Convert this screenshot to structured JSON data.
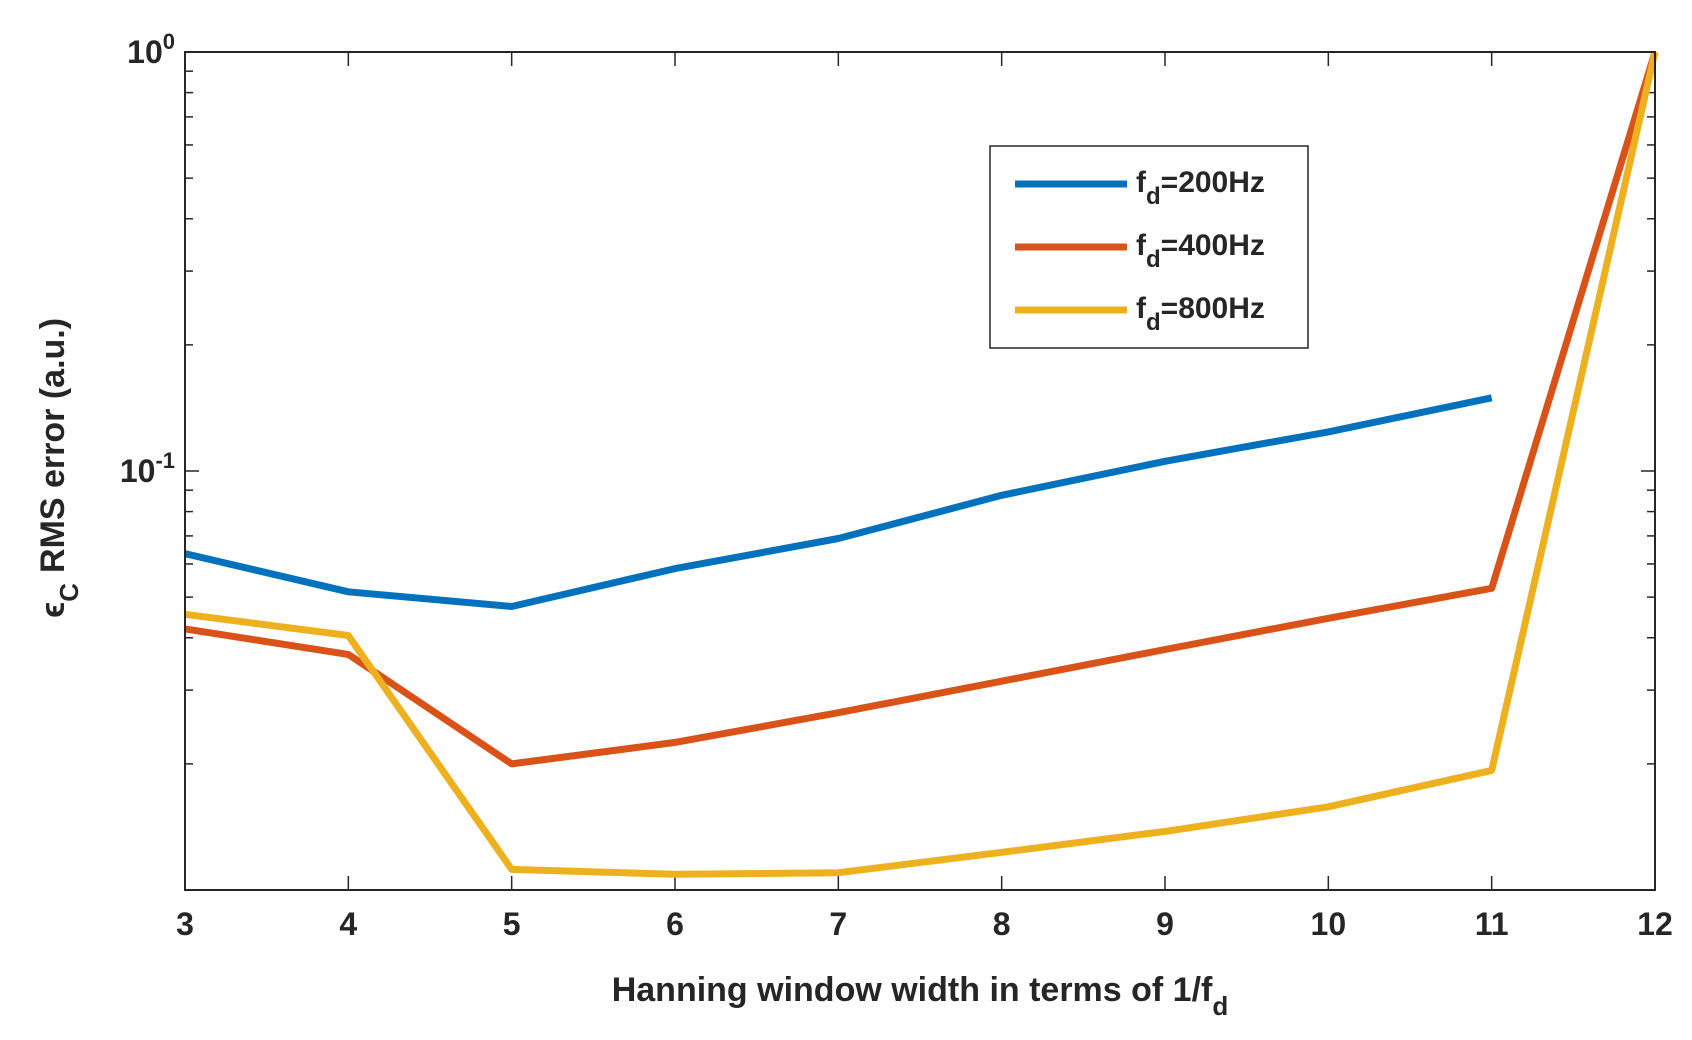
{
  "chart_data": {
    "type": "line",
    "title": "",
    "xlabel": {
      "main": "Hanning window width in terms of 1/f",
      "sub": "d"
    },
    "ylabel": {
      "symbol": "ϵ",
      "sub": "C",
      "rest": "RMS error (a.u.)"
    },
    "x": [
      3,
      4,
      5,
      6,
      7,
      8,
      9,
      10,
      11,
      12
    ],
    "xlim": [
      3,
      12
    ],
    "ylim": [
      0.01,
      1
    ],
    "yscale": "log",
    "x_tick_labels": [
      "3",
      "4",
      "5",
      "6",
      "7",
      "8",
      "9",
      "10",
      "11",
      "12"
    ],
    "y_tick_labels": [
      {
        "value": 0.1,
        "base": "10",
        "exp": "-1"
      },
      {
        "value": 1,
        "base": "10",
        "exp": "0"
      }
    ],
    "legend_position": "upper-right",
    "grid": false,
    "series": [
      {
        "name": "f_d=200Hz",
        "label_main": "f",
        "label_sub": "d",
        "label_rest": "=200Hz",
        "color": "#0072BD",
        "x": [
          3,
          4,
          5,
          6,
          7,
          8,
          9,
          10,
          11
        ],
        "values": [
          0.0635,
          0.0515,
          0.0475,
          0.0585,
          0.069,
          0.0875,
          0.1055,
          0.124,
          0.1495
        ]
      },
      {
        "name": "f_d=400Hz",
        "label_main": "f",
        "label_sub": "d",
        "label_rest": "=400Hz",
        "color": "#D95319",
        "x": [
          3,
          4,
          5,
          6,
          7,
          8,
          9,
          10,
          11,
          12
        ],
        "values": [
          0.042,
          0.0365,
          0.02,
          0.0225,
          0.0265,
          0.0315,
          0.0375,
          0.0445,
          0.0525,
          1.0
        ]
      },
      {
        "name": "f_d=800Hz",
        "label_main": "f",
        "label_sub": "d",
        "label_rest": "=800Hz",
        "color": "#EDB120",
        "x": [
          3,
          4,
          5,
          6,
          7,
          8,
          9,
          10,
          11,
          12
        ],
        "values": [
          0.0455,
          0.0405,
          0.0112,
          0.0109,
          0.011,
          0.0123,
          0.0138,
          0.0158,
          0.0193,
          1.0
        ]
      }
    ]
  }
}
